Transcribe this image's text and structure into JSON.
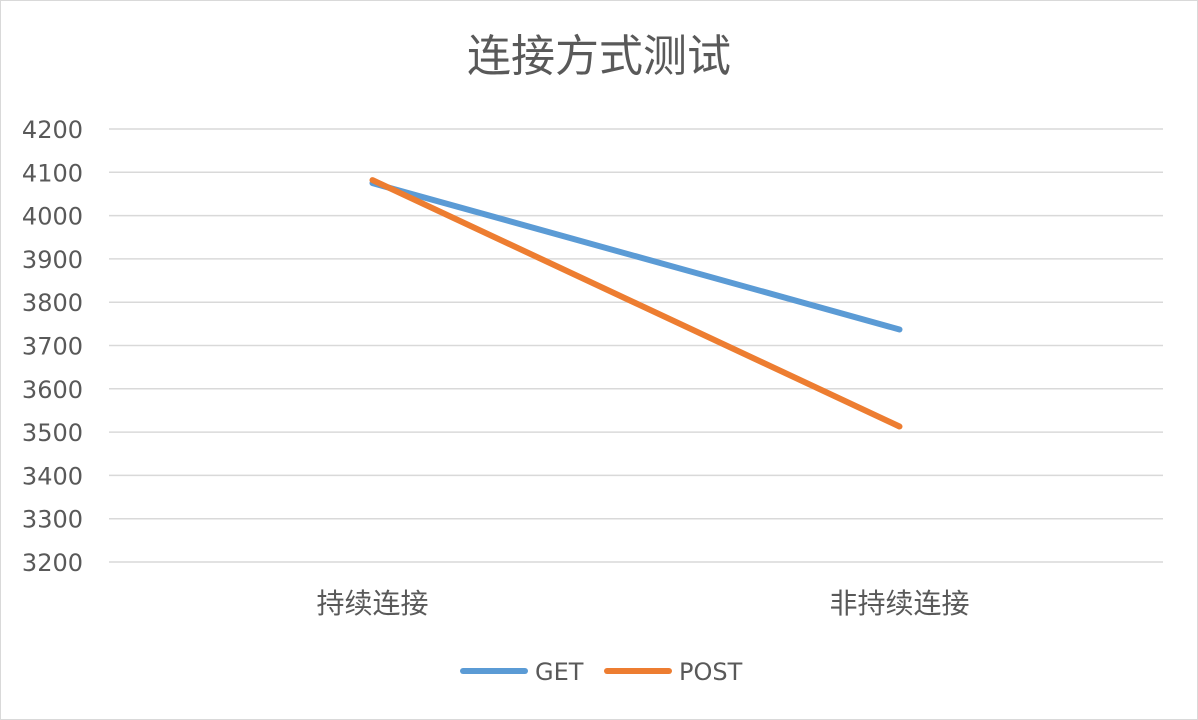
{
  "chart_data": {
    "type": "line",
    "title": "连接方式测试",
    "categories": [
      "持续连接",
      "非持续连接"
    ],
    "series": [
      {
        "name": "GET",
        "values": [
          4075,
          3737
        ],
        "color": "#5b9bd5"
      },
      {
        "name": "POST",
        "values": [
          4082,
          3513
        ],
        "color": "#ed7d31"
      }
    ],
    "ylim": [
      3200,
      4200
    ],
    "yticks": [
      4200,
      4100,
      4000,
      3900,
      3800,
      3700,
      3600,
      3500,
      3400,
      3300,
      3200
    ],
    "grid": true,
    "legend_position": "bottom"
  }
}
